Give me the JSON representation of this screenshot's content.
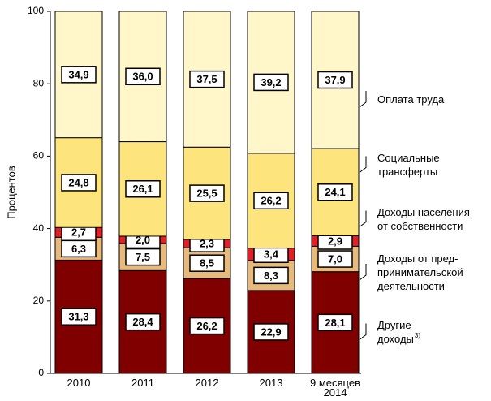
{
  "chart_data": {
    "type": "stacked_bar",
    "y_label": "Процентов",
    "categories": [
      "2010",
      "2011",
      "2012",
      "2013",
      "9 месяцев\n2014"
    ],
    "ylim": [
      0,
      100
    ],
    "yticks": [
      0,
      20,
      40,
      60,
      80,
      100
    ],
    "series": [
      {
        "name": "Другие\nдоходы",
        "footnote_mark": "3)",
        "color": "#800000",
        "values": [
          31.3,
          28.4,
          26.2,
          22.9,
          28.1
        ],
        "value_labels": [
          "31,3",
          "28,4",
          "26,2",
          "22,9",
          "28,1"
        ]
      },
      {
        "name": "Доходы от пред-\nпринимательской\nдеятельности",
        "color": "#e7b97b",
        "values": [
          6.3,
          7.5,
          8.5,
          8.3,
          7.0
        ],
        "value_labels": [
          "6,3",
          "7,5",
          "8,5",
          "8,3",
          "7,0"
        ]
      },
      {
        "name": "Доходы населения\nот собственности",
        "color": "#e41e26",
        "values": [
          2.7,
          2.0,
          2.3,
          3.4,
          2.9
        ],
        "value_labels": [
          "2,7",
          "2,0",
          "2,3",
          "3,4",
          "2,9"
        ]
      },
      {
        "name": "Социальные\nтрансферты",
        "color": "#fde47c",
        "values": [
          24.8,
          26.1,
          25.5,
          26.2,
          24.1
        ],
        "value_labels": [
          "24,8",
          "26,1",
          "25,5",
          "26,2",
          "24,1"
        ]
      },
      {
        "name": "Оплата труда",
        "color": "#fff7ca",
        "values": [
          34.9,
          36.0,
          37.5,
          39.2,
          37.9
        ],
        "value_labels": [
          "34,9",
          "36,0",
          "37,5",
          "39,2",
          "37,9"
        ]
      }
    ]
  }
}
